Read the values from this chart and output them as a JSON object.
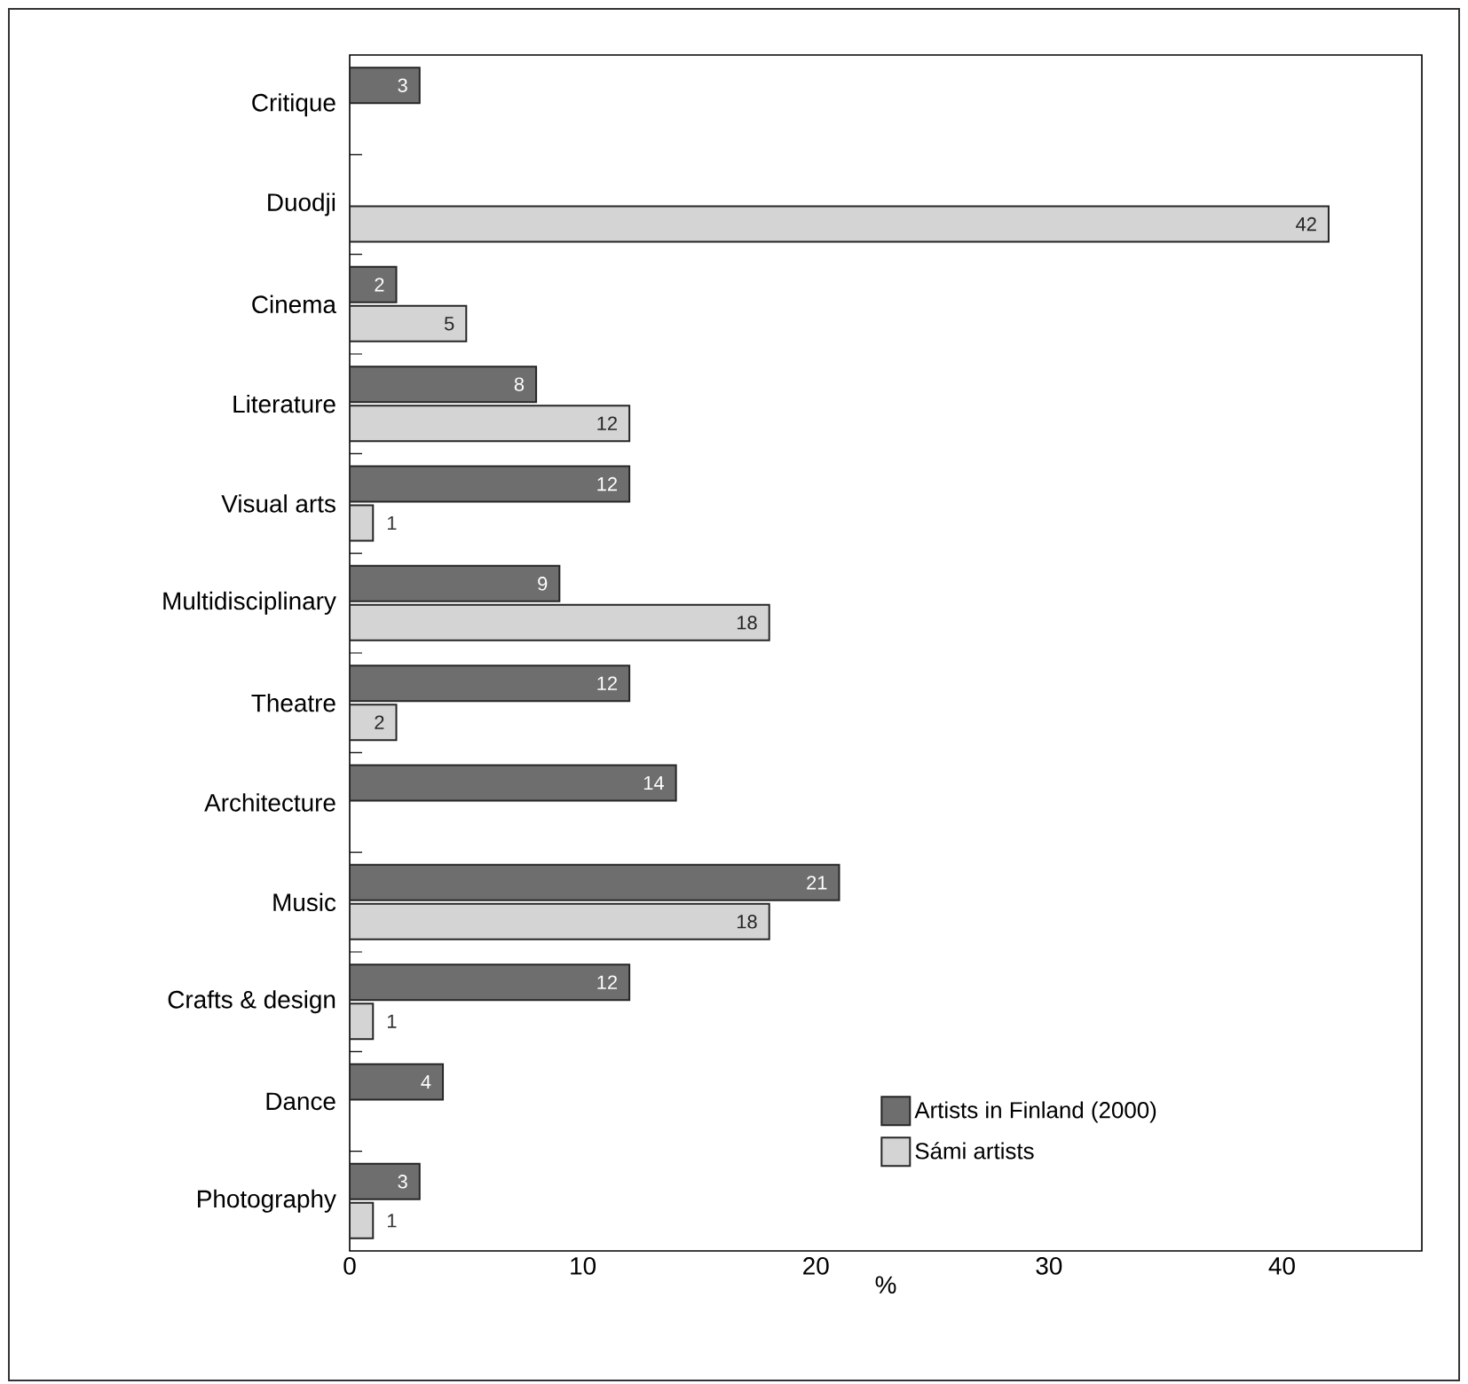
{
  "chart_data": {
    "type": "bar",
    "orientation": "horizontal",
    "categories": [
      "Critique",
      "Duodji",
      "Cinema",
      "Literature",
      "Visual arts",
      "Multidisciplinary",
      "Theatre",
      "Architecture",
      "Music",
      "Crafts & design",
      "Dance",
      "Photography"
    ],
    "series": [
      {
        "name": "Artists in Finland (2000)",
        "color": "#6e6e6e",
        "values": [
          3,
          null,
          2,
          8,
          12,
          9,
          12,
          14,
          21,
          12,
          4,
          3
        ]
      },
      {
        "name": "Sámi artists",
        "color": "#d4d4d4",
        "values": [
          null,
          42,
          5,
          12,
          1,
          18,
          2,
          null,
          18,
          1,
          null,
          1
        ]
      }
    ],
    "xlabel": "%",
    "xlim": [
      0,
      46
    ],
    "xticks": [
      0,
      10,
      20,
      30,
      40
    ],
    "data_labels": true,
    "legend": "bottom right",
    "grid": false
  }
}
